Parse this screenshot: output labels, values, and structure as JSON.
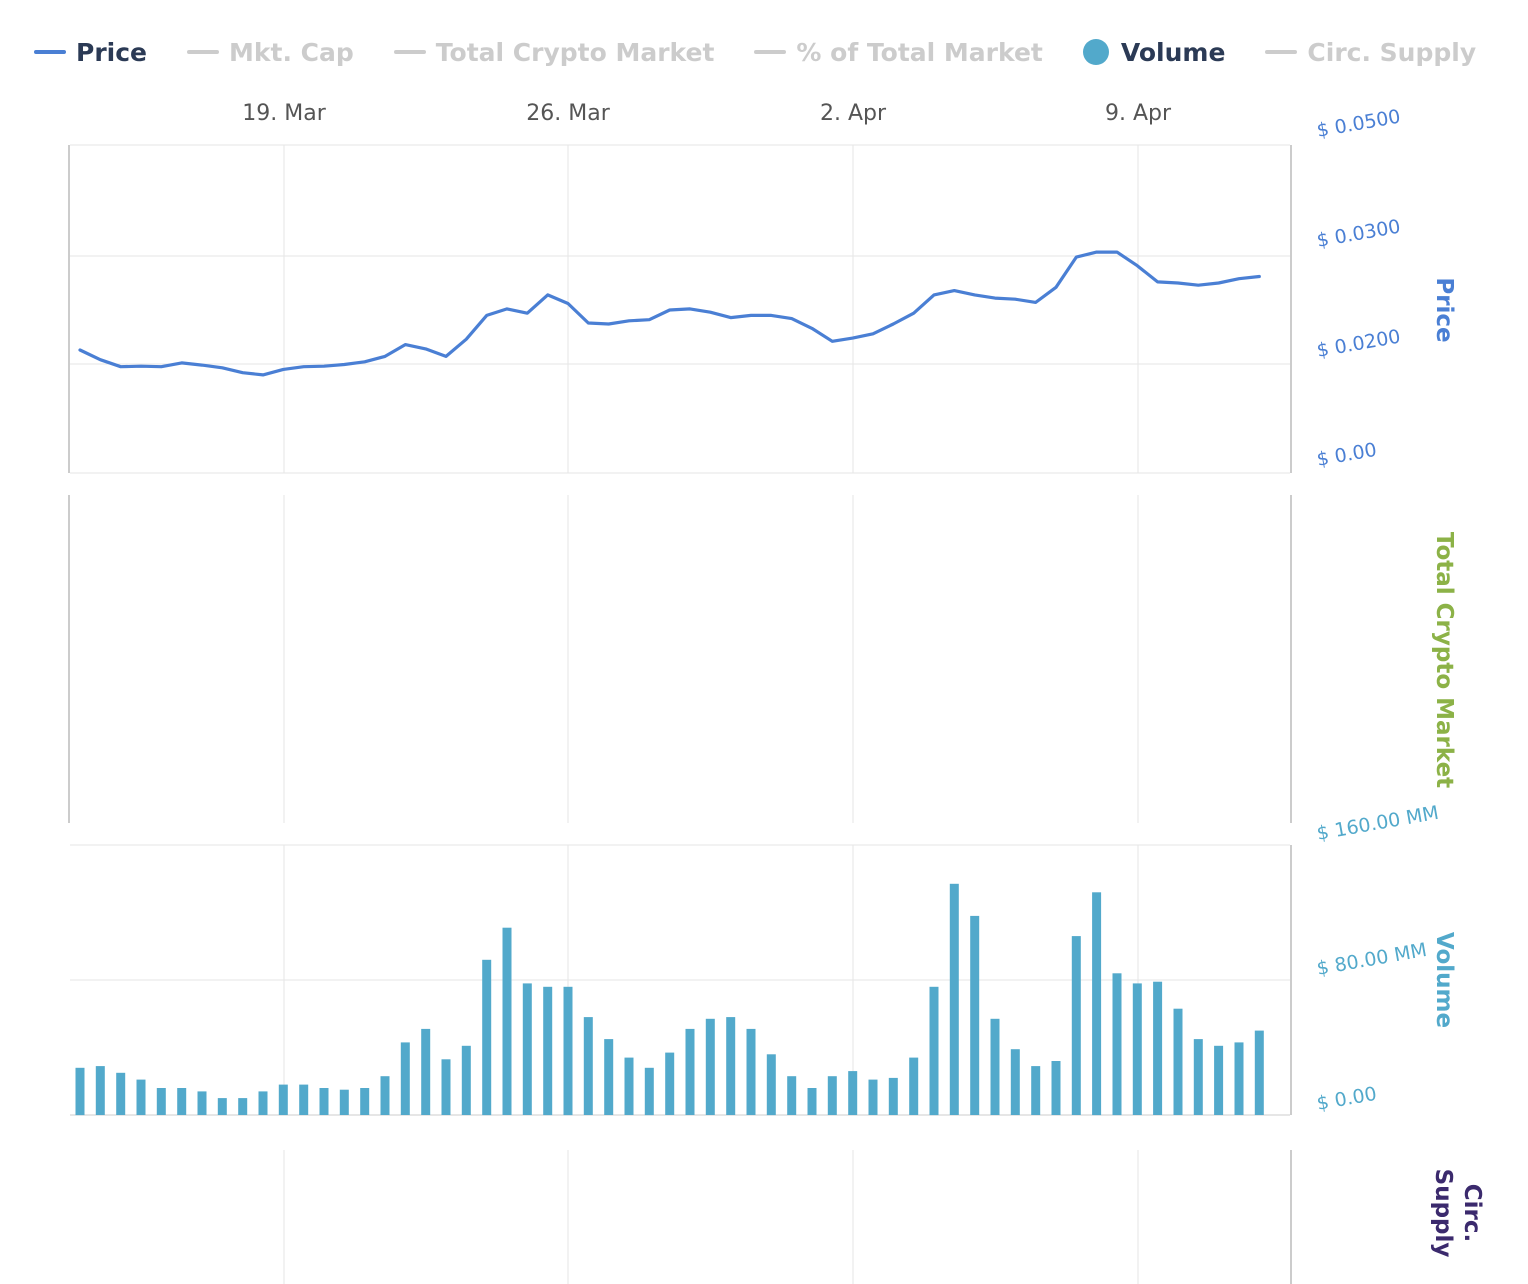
{
  "legend": [
    {
      "label": "Price",
      "active": true,
      "marker": "line",
      "color": "#4a7fd4"
    },
    {
      "label": "Mkt. Cap",
      "active": false,
      "marker": "line",
      "color": "#cccccc"
    },
    {
      "label": "Total Crypto Market",
      "active": false,
      "marker": "line",
      "color": "#cccccc"
    },
    {
      "label": "% of Total Market",
      "active": false,
      "marker": "line",
      "color": "#cccccc"
    },
    {
      "label": "Volume",
      "active": true,
      "marker": "circle",
      "color": "#52a9cb"
    },
    {
      "label": "Circ. Supply",
      "active": false,
      "marker": "line",
      "color": "#cccccc"
    }
  ],
  "x_axis": {
    "ticks": [
      "19. Mar",
      "26. Mar",
      "2. Apr",
      "9. Apr"
    ]
  },
  "axis_titles": {
    "price": "Price",
    "total_market": "Total Crypto Market",
    "volume": "Volume",
    "circ_supply": "Circ. Supply"
  },
  "colors": {
    "price": "#4a7fd4",
    "volume": "#52a9cb",
    "total_market": "#8cb247",
    "circ_supply": "#3b2a6d",
    "grid": "#e6e6e6",
    "axis_label": "#555555"
  },
  "chart_data": [
    {
      "type": "line",
      "title": "",
      "ylabel": "Price",
      "ylim": [
        0,
        0.05
      ],
      "y_ticks": [
        "$ 0.00",
        "$ 0.0200",
        "$ 0.0300",
        "$ 0.0500"
      ],
      "x_start": "14. Mar",
      "series": [
        {
          "name": "Price",
          "values": [
            0.0213,
            0.0204,
            0.0195,
            0.0196,
            0.0195,
            0.0201,
            0.0198,
            0.0193,
            0.0184,
            0.018,
            0.019,
            0.0195,
            0.0196,
            0.0199,
            0.0202,
            0.0207,
            0.0218,
            0.0214,
            0.0207,
            0.0223,
            0.0245,
            0.0251,
            0.0247,
            0.0264,
            0.0256,
            0.0238,
            0.0237,
            0.024,
            0.0241,
            0.025,
            0.0251,
            0.0248,
            0.0243,
            0.0245,
            0.0245,
            0.0242,
            0.0233,
            0.0221,
            0.0224,
            0.0228,
            0.0237,
            0.0247,
            0.0264,
            0.0268,
            0.0264,
            0.0261,
            0.026,
            0.0257,
            0.0271,
            0.0299,
            0.0307,
            0.0307,
            0.0291,
            0.0276,
            0.0275,
            0.0273,
            0.0275,
            0.0279,
            0.0281
          ]
        }
      ]
    },
    {
      "type": "line",
      "title": "",
      "ylabel": "Total Crypto Market",
      "series": []
    },
    {
      "type": "bar",
      "title": "",
      "ylabel": "Volume",
      "ylim": [
        0,
        160
      ],
      "unit": "MM",
      "y_ticks": [
        "$ 0.00",
        "$ 80.00 MM",
        "$ 160.00 MM"
      ],
      "x_start": "14. Mar",
      "series": [
        {
          "name": "Volume",
          "values": [
            28,
            29,
            25,
            21,
            16,
            16,
            14,
            10,
            10,
            14,
            18,
            18,
            16,
            15,
            16,
            23,
            43,
            51,
            33,
            41,
            92,
            111,
            78,
            76,
            76,
            58,
            45,
            34,
            28,
            37,
            51,
            57,
            58,
            51,
            36,
            23,
            16,
            23,
            26,
            21,
            22,
            34,
            76,
            137,
            118,
            57,
            39,
            29,
            32,
            106,
            132,
            84,
            78,
            79,
            63,
            45,
            41,
            43,
            50
          ]
        }
      ]
    },
    {
      "type": "line",
      "title": "",
      "ylabel": "Circ. Supply",
      "series": []
    }
  ]
}
